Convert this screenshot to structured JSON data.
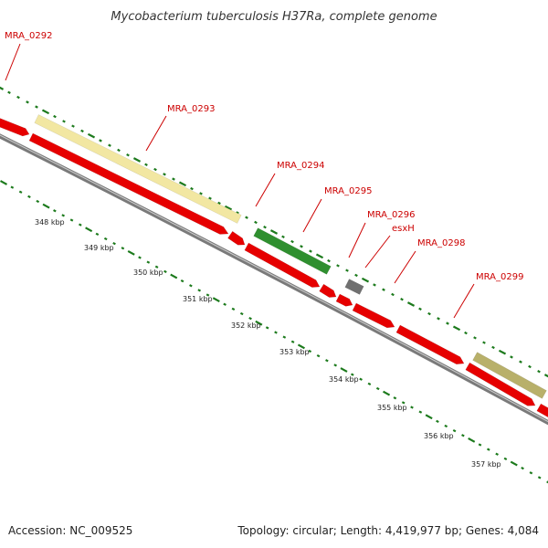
{
  "title": "Mycobacterium tuberculosis H37Ra, complete genome",
  "colors": {
    "backbone": "#7a7a7a",
    "cds_forward": "#e60000",
    "label": "#cc0000",
    "tick": "#1c7a1c",
    "gene_pale_yellow": "#f2e7a2",
    "gene_green": "#2f8f2f",
    "gene_grey": "#707070",
    "gene_olive": "#b8b06a"
  },
  "genes": [
    {
      "name": "MRA_0292",
      "color": "gene_pale_yellow"
    },
    {
      "name": "MRA_0293",
      "color": "cds_forward"
    },
    {
      "name": "MRA_0294",
      "color": "cds_forward"
    },
    {
      "name": "MRA_0295",
      "color": "gene_green"
    },
    {
      "name": "MRA_0296",
      "color": "cds_forward"
    },
    {
      "name": "esxH",
      "color": "gene_grey"
    },
    {
      "name": "MRA_0298",
      "color": "cds_forward"
    },
    {
      "name": "MRA_0299",
      "color": "gene_olive"
    }
  ],
  "kbp_labels": [
    "348 kbp",
    "349 kbp",
    "350 kbp",
    "351 kbp",
    "352 kbp",
    "353 kbp",
    "354 kbp",
    "355 kbp",
    "356 kbp",
    "357 kbp"
  ],
  "footer": {
    "accession": "Accession: NC_009525",
    "summary": "Topology: circular; Length: 4,419,977 bp; Genes: 4,084"
  }
}
